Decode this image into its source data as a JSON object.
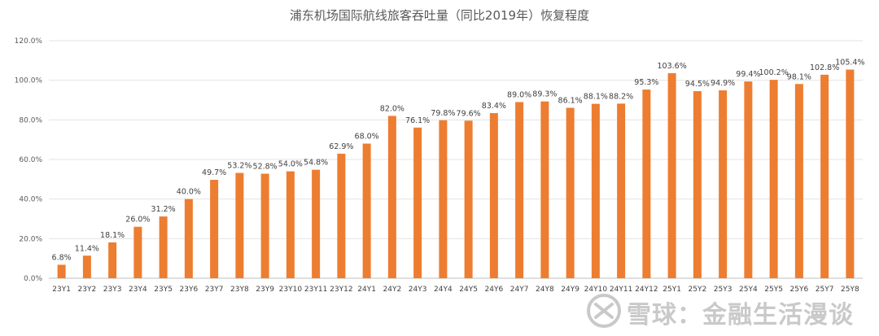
{
  "chart_data": {
    "type": "bar",
    "title": "浦东机场国际航线旅客吞吐量（同比2019年）恢复程度",
    "xlabel": "",
    "ylabel": "",
    "ylim": [
      0,
      120
    ],
    "yticks": [
      "0.0%",
      "20.0%",
      "40.0%",
      "60.0%",
      "80.0%",
      "100.0%",
      "120.0%"
    ],
    "grid": true,
    "categories": [
      "23Y1",
      "23Y2",
      "23Y3",
      "23Y4",
      "23Y5",
      "23Y6",
      "23Y7",
      "23Y8",
      "23Y9",
      "23Y10",
      "23Y11",
      "23Y12",
      "24Y1",
      "24Y2",
      "24Y3",
      "24Y4",
      "24Y5",
      "24Y6",
      "24Y7",
      "24Y8",
      "24Y9",
      "24Y10",
      "24Y11",
      "24Y12",
      "25Y1",
      "25Y2",
      "25Y3",
      "25Y4",
      "25Y5",
      "25Y6",
      "25Y7",
      "25Y8"
    ],
    "values": [
      6.8,
      11.4,
      18.1,
      26.0,
      31.2,
      40.0,
      49.7,
      53.2,
      52.8,
      54.0,
      54.8,
      62.9,
      68.0,
      82.0,
      76.1,
      79.8,
      79.6,
      83.4,
      89.0,
      89.3,
      86.1,
      88.1,
      88.2,
      95.3,
      103.6,
      94.5,
      94.9,
      99.4,
      100.2,
      98.1,
      102.8,
      105.4
    ],
    "labels": [
      "6.8%",
      "11.4%",
      "18.1%",
      "26.0%",
      "31.2%",
      "40.0%",
      "49.7%",
      "53.2%",
      "52.8%",
      "54.0%",
      "54.8%",
      "62.9%",
      "68.0%",
      "82.0%",
      "76.1%",
      "79.8%",
      "79.6%",
      "83.4%",
      "89.0%",
      "89.3%",
      "86.1%",
      "88.1%",
      "88.2%",
      "95.3%",
      "103.6%",
      "94.5%",
      "94.9%",
      "99.4%",
      "100.2%",
      "98.1%",
      "102.8%",
      "105.4%"
    ],
    "bar_color": "#ED7D31"
  },
  "watermark": {
    "text": "雪球：金融生活漫谈",
    "icon": "snowball-logo-icon"
  }
}
